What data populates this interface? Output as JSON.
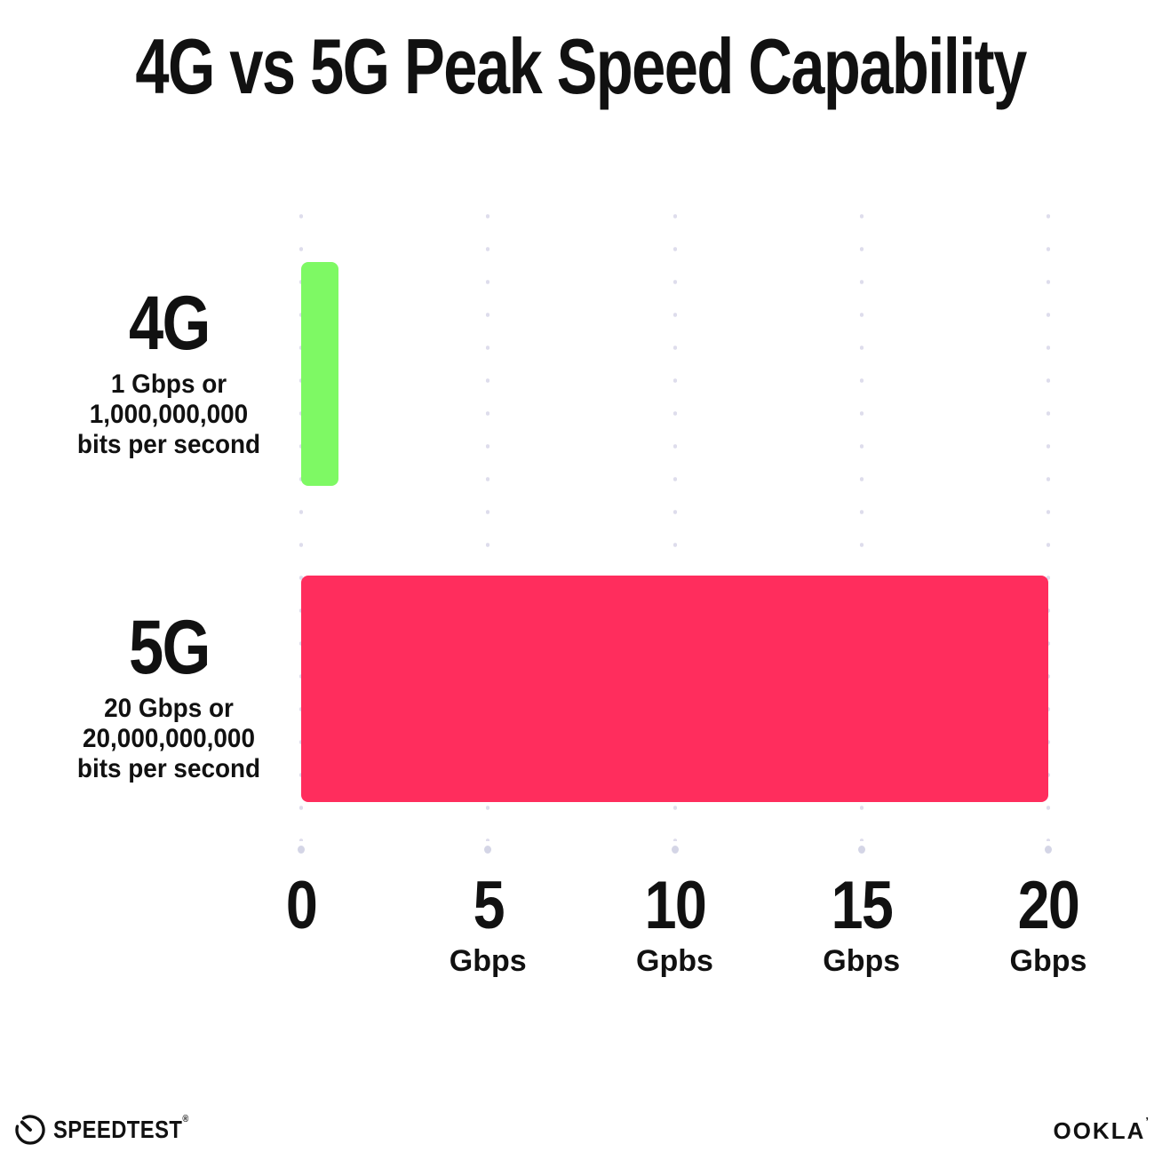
{
  "title": "4G vs 5G Peak Speed Capability",
  "chart_data": {
    "type": "bar",
    "orientation": "horizontal",
    "title": "4G vs 5G Peak Speed Capability",
    "x_axis": {
      "range": [
        0,
        20
      ],
      "gridlines": "dotted-vertical",
      "ticks": [
        {
          "value": "0",
          "unit": ""
        },
        {
          "value": "5",
          "unit": "Gbps"
        },
        {
          "value": "10",
          "unit": "Gpbs"
        },
        {
          "value": "15",
          "unit": "Gbps"
        },
        {
          "value": "20",
          "unit": "Gbps"
        }
      ]
    },
    "rows": [
      {
        "label": "4G",
        "desc_lines": [
          "1 Gbps or",
          "1,000,000,000",
          "bits per second"
        ],
        "value": 1,
        "color": "#7EF964"
      },
      {
        "label": "5G",
        "desc_lines": [
          "20 Gbps or",
          "20,000,000,000",
          "bits per second"
        ],
        "value": 20,
        "color": "#FF2D5D"
      }
    ]
  },
  "footer": {
    "speedtest": {
      "label": "SPEEDTEST",
      "mark": "®",
      "icon": "speedtest-gauge-icon"
    },
    "ookla": {
      "label": "OOKLA",
      "mark": "’"
    }
  },
  "colors": {
    "background": "#FFFFFF",
    "text": "#111111",
    "bar_4g": "#7EF964",
    "bar_5g": "#FF2D5D",
    "gridline_dot": "#DEDDEC"
  }
}
